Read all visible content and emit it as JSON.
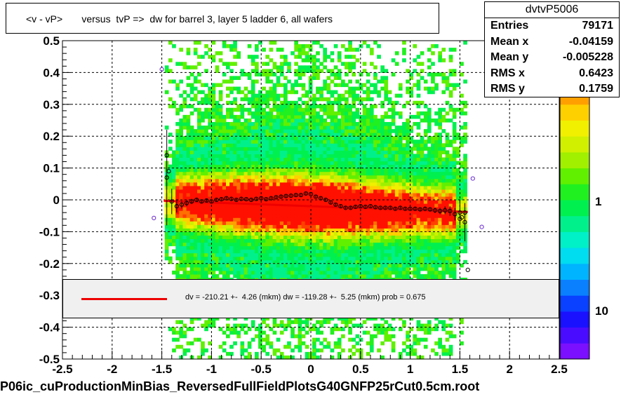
{
  "chart_data": {
    "type": "heatmap",
    "title": "<v - vP>       versus  tvP =>  dw for barrel 3, layer 5 ladder 6, all wafers",
    "xlabel": "",
    "ylabel": "",
    "xlim": [
      -2.5,
      2.5
    ],
    "ylim": [
      -0.5,
      0.5
    ],
    "x_ticks": [
      "-2.5",
      "-2",
      "-1.5",
      "-1",
      "-0.5",
      "0",
      "0.5",
      "1",
      "1.5",
      "2",
      "2.5"
    ],
    "y_ticks": [
      "0.5",
      "0.4",
      "0.3",
      "0.2",
      "0.1",
      "0",
      "-0.1",
      "-0.2",
      "-0.3",
      "-0.4",
      "-0.5"
    ],
    "grid": true,
    "colorbar": {
      "labels": [
        "1",
        "10"
      ],
      "colors": [
        "#7a10ff",
        "#4a0cff",
        "#1a12ff",
        "#0a40ff",
        "#0a80ff",
        "#00b4ff",
        "#00dcf0",
        "#00f0c8",
        "#00f08c",
        "#00f050",
        "#20f020",
        "#60f000",
        "#a0f000",
        "#d0f000",
        "#f0f000",
        "#ffd000",
        "#ffa000",
        "#ff7000",
        "#ff4000",
        "#ff1000"
      ]
    },
    "stats": {
      "name": "dvtvP5006",
      "rows": [
        {
          "key": "Entries",
          "value": "79171"
        },
        {
          "key": "Mean x",
          "value": "-0.04159"
        },
        {
          "key": "Mean y",
          "value": "-0.005228"
        },
        {
          "key": "RMS x",
          "value": "0.6423"
        },
        {
          "key": "RMS y",
          "value": "0.1759"
        }
      ]
    },
    "fit_legend": "dv = -210.21 +-  4.26 (mkm) dw = -119.28 +-  5.25 (mkm) prob = 0.675",
    "fit_line": {
      "x": [
        -1.48,
        1.58
      ],
      "y": [
        -0.003,
        -0.038
      ],
      "color": "#ee0000"
    },
    "profile_points": {
      "x": [
        -1.45,
        -1.4,
        -1.35,
        -1.3,
        -1.25,
        -1.2,
        -1.15,
        -1.1,
        -1.05,
        -1.0,
        -0.95,
        -0.9,
        -0.85,
        -0.8,
        -0.75,
        -0.7,
        -0.65,
        -0.6,
        -0.55,
        -0.5,
        -0.45,
        -0.4,
        -0.35,
        -0.3,
        -0.25,
        -0.2,
        -0.15,
        -0.1,
        -0.05,
        0.0,
        0.05,
        0.1,
        0.15,
        0.2,
        0.25,
        0.3,
        0.35,
        0.4,
        0.45,
        0.5,
        0.55,
        0.6,
        0.65,
        0.7,
        0.75,
        0.8,
        0.85,
        0.9,
        0.95,
        1.0,
        1.05,
        1.1,
        1.15,
        1.2,
        1.25,
        1.3,
        1.35,
        1.4,
        1.45,
        1.5,
        1.55
      ],
      "y": [
        0.07,
        -0.005,
        -0.02,
        -0.015,
        -0.01,
        -0.005,
        0.0,
        -0.005,
        -0.002,
        -0.005,
        0.0,
        0.002,
        0.005,
        0.003,
        0.0,
        0.003,
        0.002,
        0.0,
        0.003,
        0.005,
        0.002,
        0.005,
        0.008,
        0.01,
        0.012,
        0.013,
        0.015,
        0.015,
        0.02,
        0.018,
        0.01,
        0.005,
        0.0,
        -0.008,
        -0.015,
        -0.02,
        -0.025,
        -0.025,
        -0.022,
        -0.02,
        -0.022,
        -0.02,
        -0.023,
        -0.025,
        -0.025,
        -0.025,
        -0.028,
        -0.025,
        -0.028,
        -0.028,
        -0.028,
        -0.03,
        -0.028,
        -0.03,
        -0.033,
        -0.035,
        -0.033,
        -0.035,
        -0.045,
        -0.04,
        -0.07
      ],
      "err": [
        0.15,
        0.04,
        0.02,
        0.012,
        0.01,
        0.008,
        0.006,
        0.005,
        0.005,
        0.004,
        0.004,
        0.004,
        0.004,
        0.004,
        0.004,
        0.004,
        0.004,
        0.004,
        0.004,
        0.004,
        0.004,
        0.004,
        0.004,
        0.004,
        0.004,
        0.004,
        0.004,
        0.004,
        0.004,
        0.004,
        0.004,
        0.004,
        0.004,
        0.004,
        0.004,
        0.004,
        0.004,
        0.004,
        0.004,
        0.004,
        0.004,
        0.004,
        0.004,
        0.004,
        0.004,
        0.004,
        0.004,
        0.004,
        0.004,
        0.004,
        0.005,
        0.005,
        0.006,
        0.007,
        0.008,
        0.01,
        0.012,
        0.015,
        0.02,
        0.04,
        0.06
      ]
    },
    "outlier_points": {
      "x": [
        -1.5,
        -1.45,
        -1.43,
        -1.58,
        1.58,
        1.63,
        1.72,
        1.5,
        1.52,
        1.55
      ],
      "y": [
        0.41,
        0.14,
        0.09,
        -0.057,
        -0.22,
        0.067,
        -0.085,
        -0.06,
        -0.055,
        -0.04
      ]
    }
  },
  "footer": "P06ic_cuProductionMinBias_ReversedFullFieldPlotsG40GNFP25rCut0.5cm.root"
}
